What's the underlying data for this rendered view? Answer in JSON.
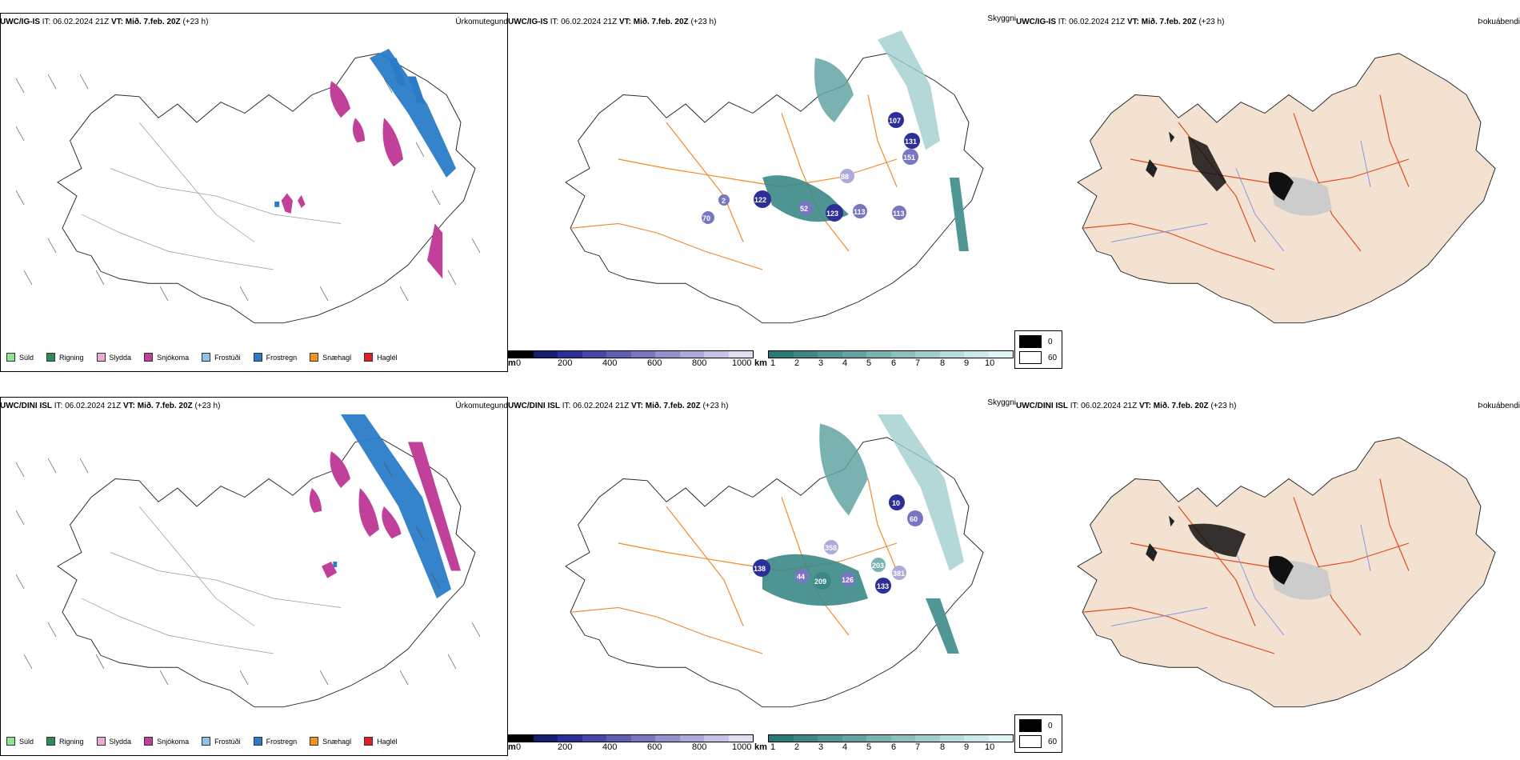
{
  "rows": [
    {
      "model": "UWC/IG-IS",
      "it": "IT: 06.02.2024 21Z",
      "vt": "VT: Mið. 7.feb. 20Z",
      "lead": "(+23 h)",
      "titles": [
        "Úrkomutegund",
        "Skyggni",
        "Þokuábendi"
      ]
    },
    {
      "model": "UWC/DINI ISL",
      "it": "IT: 06.02.2024 21Z",
      "vt": "VT: Mið. 7.feb. 20Z",
      "lead": "(+23 h)",
      "titles": [
        "Úrkomutegund",
        "Skyggni",
        "Þokuábendi"
      ]
    }
  ],
  "precip_legend": [
    {
      "label": "Súld",
      "color": "#8ee58e"
    },
    {
      "label": "Rigning",
      "color": "#2e8b57"
    },
    {
      "label": "Slydda",
      "color": "#f0a8d8"
    },
    {
      "label": "Snjókoma",
      "color": "#c0409a"
    },
    {
      "label": "Frostúði",
      "color": "#8cc2ee"
    },
    {
      "label": "Frostregn",
      "color": "#2a7cc8"
    },
    {
      "label": "Snæhagl",
      "color": "#f0961e"
    },
    {
      "label": "Haglél",
      "color": "#e02020"
    }
  ],
  "ceiling_scale": {
    "unit": "m",
    "ticks": [
      "0",
      "200",
      "400",
      "600",
      "800",
      "1000"
    ],
    "colors": [
      "#000000",
      "#151e6e",
      "#2c2f96",
      "#4747a8",
      "#5e5eb2",
      "#7876c0",
      "#9292cc",
      "#acaad8",
      "#c6c4e4",
      "#e0def0"
    ]
  },
  "visibility_scale": {
    "unit": "km",
    "ticks": [
      "1",
      "2",
      "3",
      "4",
      "5",
      "6",
      "7",
      "8",
      "9",
      "10"
    ],
    "colors": [
      "#267a78",
      "#3b8886",
      "#4f9695",
      "#63a4a3",
      "#78b2b1",
      "#8cc0bf",
      "#a1cecd",
      "#b5dcdb",
      "#cae9e8",
      "#e0f4f3"
    ]
  },
  "fog_legend": [
    {
      "label": "0",
      "color": "#000000"
    },
    {
      "label": "60",
      "color": "#ffffff"
    }
  ],
  "ceiling_labels_top": [
    "107",
    "131",
    "151",
    "88",
    "122",
    "123",
    "52",
    "113",
    "113",
    "70",
    "2"
  ],
  "ceiling_labels_bottom": [
    "10",
    "60",
    "138",
    "358",
    "44",
    "209",
    "126",
    "203",
    "133",
    "381"
  ],
  "colors": {
    "roads": "#f08a2a",
    "roads_fog": "#e24a1a",
    "rivers": "#7f95e8",
    "land_fog": "#f3e2d2",
    "coast": "#000000"
  }
}
